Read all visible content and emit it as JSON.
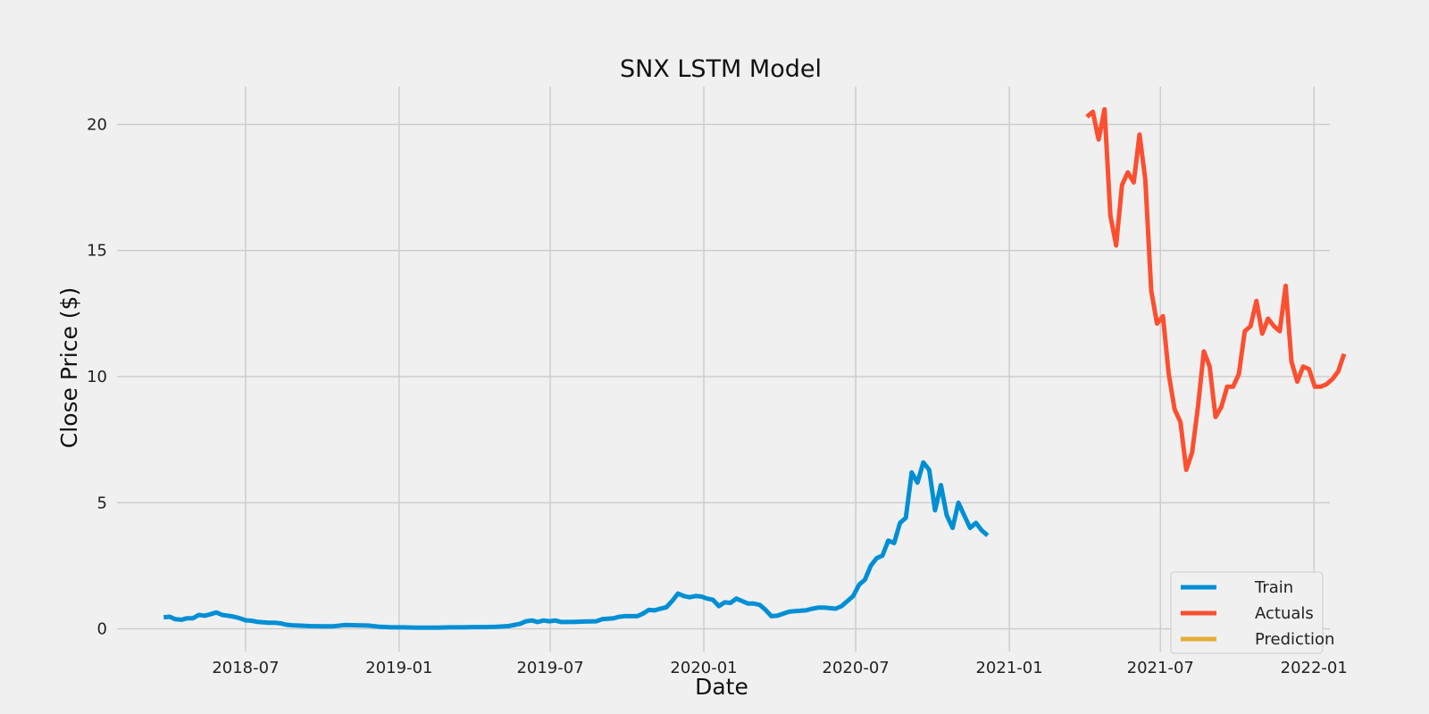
{
  "chart_data": {
    "type": "line",
    "title": "SNX LSTM Model",
    "xlabel": "Date",
    "ylabel": "Close Price ($)",
    "x_type": "date",
    "xlim": [
      "2018-01-28",
      "2022-01-20"
    ],
    "ylim": [
      -0.9,
      21.5
    ],
    "x_ticks": [
      "2018-07-01",
      "2019-01-01",
      "2019-07-01",
      "2020-01-01",
      "2020-07-01",
      "2021-01-01",
      "2021-07-01",
      "2022-01-01"
    ],
    "x_tick_labels": [
      "2018-07",
      "2019-01",
      "2019-07",
      "2020-01",
      "2020-07",
      "2021-01",
      "2021-07",
      "2022-01"
    ],
    "y_ticks": [
      0,
      5,
      10,
      15,
      20
    ],
    "y_tick_labels": [
      "0",
      "5",
      "10",
      "15",
      "20"
    ],
    "grid": true,
    "legend_position": "bottom-right",
    "series": [
      {
        "name": "Train",
        "color": "#008fd5",
        "points": [
          [
            "2018-03-25",
            0.46
          ],
          [
            "2018-04-01",
            0.48
          ],
          [
            "2018-04-08",
            0.38
          ],
          [
            "2018-04-15",
            0.36
          ],
          [
            "2018-04-22",
            0.42
          ],
          [
            "2018-04-29",
            0.42
          ],
          [
            "2018-05-06",
            0.55
          ],
          [
            "2018-05-13",
            0.52
          ],
          [
            "2018-05-20",
            0.58
          ],
          [
            "2018-05-27",
            0.65
          ],
          [
            "2018-06-03",
            0.55
          ],
          [
            "2018-06-10",
            0.52
          ],
          [
            "2018-06-17",
            0.48
          ],
          [
            "2018-06-24",
            0.42
          ],
          [
            "2018-07-01",
            0.34
          ],
          [
            "2018-07-08",
            0.32
          ],
          [
            "2018-07-15",
            0.28
          ],
          [
            "2018-07-22",
            0.26
          ],
          [
            "2018-07-29",
            0.24
          ],
          [
            "2018-08-05",
            0.24
          ],
          [
            "2018-08-12",
            0.22
          ],
          [
            "2018-08-19",
            0.16
          ],
          [
            "2018-08-26",
            0.14
          ],
          [
            "2018-09-02",
            0.13
          ],
          [
            "2018-09-16",
            0.11
          ],
          [
            "2018-09-30",
            0.1
          ],
          [
            "2018-10-14",
            0.1
          ],
          [
            "2018-10-28",
            0.15
          ],
          [
            "2018-11-11",
            0.14
          ],
          [
            "2018-11-25",
            0.13
          ],
          [
            "2018-12-09",
            0.08
          ],
          [
            "2018-12-23",
            0.06
          ],
          [
            "2019-01-06",
            0.06
          ],
          [
            "2019-01-20",
            0.05
          ],
          [
            "2019-02-03",
            0.05
          ],
          [
            "2019-02-17",
            0.05
          ],
          [
            "2019-03-03",
            0.06
          ],
          [
            "2019-03-17",
            0.06
          ],
          [
            "2019-03-31",
            0.07
          ],
          [
            "2019-04-14",
            0.07
          ],
          [
            "2019-04-28",
            0.08
          ],
          [
            "2019-05-12",
            0.11
          ],
          [
            "2019-05-26",
            0.2
          ],
          [
            "2019-06-02",
            0.3
          ],
          [
            "2019-06-09",
            0.33
          ],
          [
            "2019-06-16",
            0.27
          ],
          [
            "2019-06-23",
            0.33
          ],
          [
            "2019-06-30",
            0.3
          ],
          [
            "2019-07-07",
            0.33
          ],
          [
            "2019-07-14",
            0.27
          ],
          [
            "2019-07-28",
            0.27
          ],
          [
            "2019-08-11",
            0.29
          ],
          [
            "2019-08-25",
            0.3
          ],
          [
            "2019-09-01",
            0.38
          ],
          [
            "2019-09-08",
            0.4
          ],
          [
            "2019-09-15",
            0.42
          ],
          [
            "2019-09-22",
            0.48
          ],
          [
            "2019-09-29",
            0.5
          ],
          [
            "2019-10-13",
            0.5
          ],
          [
            "2019-10-20",
            0.6
          ],
          [
            "2019-10-27",
            0.75
          ],
          [
            "2019-11-03",
            0.73
          ],
          [
            "2019-11-10",
            0.8
          ],
          [
            "2019-11-17",
            0.85
          ],
          [
            "2019-11-24",
            1.1
          ],
          [
            "2019-12-01",
            1.4
          ],
          [
            "2019-12-08",
            1.3
          ],
          [
            "2019-12-15",
            1.25
          ],
          [
            "2019-12-22",
            1.3
          ],
          [
            "2019-12-29",
            1.28
          ],
          [
            "2020-01-05",
            1.2
          ],
          [
            "2020-01-12",
            1.15
          ],
          [
            "2020-01-19",
            0.9
          ],
          [
            "2020-01-26",
            1.05
          ],
          [
            "2020-02-02",
            1.03
          ],
          [
            "2020-02-09",
            1.2
          ],
          [
            "2020-02-16",
            1.1
          ],
          [
            "2020-02-23",
            1.0
          ],
          [
            "2020-03-01",
            1.0
          ],
          [
            "2020-03-08",
            0.95
          ],
          [
            "2020-03-15",
            0.75
          ],
          [
            "2020-03-22",
            0.5
          ],
          [
            "2020-03-29",
            0.52
          ],
          [
            "2020-04-05",
            0.6
          ],
          [
            "2020-04-12",
            0.68
          ],
          [
            "2020-04-19",
            0.7
          ],
          [
            "2020-04-26",
            0.72
          ],
          [
            "2020-05-03",
            0.74
          ],
          [
            "2020-05-10",
            0.8
          ],
          [
            "2020-05-17",
            0.84
          ],
          [
            "2020-05-24",
            0.84
          ],
          [
            "2020-05-31",
            0.82
          ],
          [
            "2020-06-07",
            0.8
          ],
          [
            "2020-06-14",
            0.9
          ],
          [
            "2020-06-21",
            1.1
          ],
          [
            "2020-06-28",
            1.3
          ],
          [
            "2020-07-05",
            1.75
          ],
          [
            "2020-07-12",
            1.95
          ],
          [
            "2020-07-19",
            2.5
          ],
          [
            "2020-07-26",
            2.8
          ],
          [
            "2020-08-02",
            2.9
          ],
          [
            "2020-08-09",
            3.5
          ],
          [
            "2020-08-16",
            3.4
          ],
          [
            "2020-08-23",
            4.2
          ],
          [
            "2020-08-30",
            4.4
          ],
          [
            "2020-09-06",
            6.2
          ],
          [
            "2020-09-13",
            5.8
          ],
          [
            "2020-09-20",
            6.6
          ],
          [
            "2020-09-27",
            6.3
          ],
          [
            "2020-10-04",
            4.7
          ],
          [
            "2020-10-11",
            5.7
          ],
          [
            "2020-10-18",
            4.5
          ],
          [
            "2020-10-25",
            4.0
          ],
          [
            "2020-11-01",
            5.0
          ],
          [
            "2020-11-08",
            4.5
          ],
          [
            "2020-11-15",
            4.0
          ],
          [
            "2020-11-22",
            4.2
          ],
          [
            "2020-11-29",
            3.9
          ],
          [
            "2020-12-06",
            3.7
          ]
        ]
      },
      {
        "name": "Actuals",
        "color": "#fc4f30",
        "points": [
          [
            "2021-04-04",
            20.3
          ],
          [
            "2021-04-11",
            20.5
          ],
          [
            "2021-04-18",
            19.4
          ],
          [
            "2021-04-25",
            20.6
          ],
          [
            "2021-05-02",
            16.4
          ],
          [
            "2021-05-09",
            15.2
          ],
          [
            "2021-05-16",
            17.6
          ],
          [
            "2021-05-23",
            18.1
          ],
          [
            "2021-05-30",
            17.7
          ],
          [
            "2021-06-06",
            19.6
          ],
          [
            "2021-06-13",
            17.8
          ],
          [
            "2021-06-20",
            13.4
          ],
          [
            "2021-06-27",
            12.1
          ],
          [
            "2021-07-04",
            12.4
          ],
          [
            "2021-07-11",
            10.1
          ],
          [
            "2021-07-18",
            8.7
          ],
          [
            "2021-07-25",
            8.2
          ],
          [
            "2021-08-01",
            6.3
          ],
          [
            "2021-08-08",
            7.0
          ],
          [
            "2021-08-15",
            8.8
          ],
          [
            "2021-08-22",
            11.0
          ],
          [
            "2021-08-29",
            10.4
          ],
          [
            "2021-09-05",
            8.4
          ],
          [
            "2021-09-12",
            8.8
          ],
          [
            "2021-09-19",
            9.6
          ],
          [
            "2021-09-26",
            9.6
          ],
          [
            "2021-10-03",
            10.1
          ],
          [
            "2021-10-10",
            11.8
          ],
          [
            "2021-10-17",
            12.0
          ],
          [
            "2021-10-24",
            13.0
          ],
          [
            "2021-10-31",
            11.7
          ],
          [
            "2021-11-07",
            12.3
          ],
          [
            "2021-11-14",
            12.0
          ],
          [
            "2021-11-21",
            11.8
          ],
          [
            "2021-11-28",
            13.6
          ],
          [
            "2021-12-05",
            10.6
          ],
          [
            "2021-12-12",
            9.8
          ],
          [
            "2021-12-19",
            10.4
          ],
          [
            "2021-12-26",
            10.3
          ],
          [
            "2022-01-02",
            9.6
          ],
          [
            "2022-01-09",
            9.6
          ],
          [
            "2022-01-16",
            9.7
          ],
          [
            "2022-01-23",
            9.9
          ],
          [
            "2022-01-30",
            10.2
          ],
          [
            "2022-02-06",
            10.9
          ]
        ]
      },
      {
        "name": "Prediction",
        "color": "#e5ae38",
        "points": []
      }
    ]
  }
}
